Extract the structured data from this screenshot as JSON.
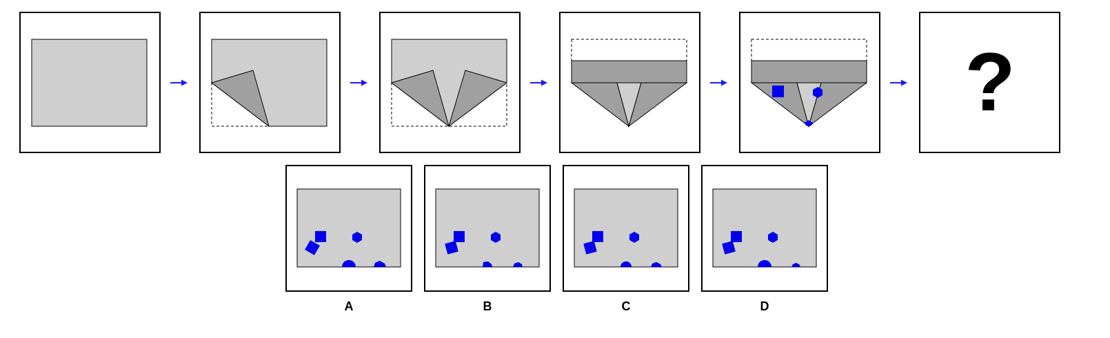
{
  "colors": {
    "paper": "#cfcfcf",
    "folded_flap": "#a0a0a0",
    "shape_fill": "#0000ee",
    "arrow": "#1a1aff",
    "frame_stroke": "#000000",
    "dashed_outline": "#000000"
  },
  "sequence": {
    "step_count": 5,
    "question_mark": "?"
  },
  "punched_shapes": [
    "square",
    "hexagon",
    "circle"
  ],
  "options": [
    {
      "label": "A",
      "shapes": [
        "square",
        "square-rotated",
        "hexagon",
        "circle-half",
        "hexagon-half"
      ]
    },
    {
      "label": "B",
      "shapes": [
        "square",
        "square-rotated",
        "hexagon",
        "circle-half",
        "hexagon-half"
      ]
    },
    {
      "label": "C",
      "shapes": [
        "square",
        "square-rotated",
        "hexagon",
        "circle-half",
        "hexagon-half"
      ]
    },
    {
      "label": "D",
      "shapes": [
        "square",
        "square-rotated",
        "hexagon",
        "circle-half",
        "hexagon-half"
      ]
    }
  ]
}
